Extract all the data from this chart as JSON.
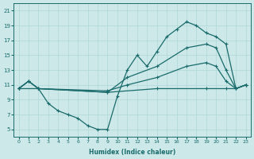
{
  "xlabel": "Humidex (Indice chaleur)",
  "xlim": [
    -0.5,
    23.5
  ],
  "ylim": [
    4,
    22
  ],
  "yticks": [
    5,
    7,
    9,
    11,
    13,
    15,
    17,
    19,
    21
  ],
  "xticks": [
    0,
    1,
    2,
    3,
    4,
    5,
    6,
    7,
    8,
    9,
    10,
    11,
    12,
    13,
    14,
    15,
    16,
    17,
    18,
    19,
    20,
    21,
    22,
    23
  ],
  "bg_color": "#cce8e8",
  "line_color": "#1a6b6b",
  "grid_color": "#b0d8d8",
  "line1": {
    "x": [
      0,
      1,
      2,
      3,
      4,
      5,
      6,
      7,
      8,
      9,
      10,
      11,
      12,
      13,
      14,
      15,
      16,
      17,
      18,
      19,
      20,
      21,
      22,
      23
    ],
    "y": [
      10.5,
      11.5,
      10.5,
      8.5,
      7.5,
      7.0,
      6.5,
      5.5,
      5.0,
      5.0,
      9.5,
      13.0,
      15.0,
      13.5,
      15.5,
      17.5,
      18.5,
      19.5,
      19.0,
      18.0,
      17.5,
      16.5,
      10.5,
      11.0
    ]
  },
  "line2": {
    "x": [
      0,
      1,
      2,
      9,
      11,
      14,
      17,
      19,
      20,
      21,
      22,
      23
    ],
    "y": [
      10.5,
      11.5,
      10.5,
      10.0,
      12.0,
      13.5,
      16.0,
      16.5,
      16.0,
      13.0,
      10.5,
      11.0
    ]
  },
  "line3": {
    "x": [
      0,
      1,
      2,
      9,
      11,
      14,
      17,
      19,
      20,
      21,
      22,
      23
    ],
    "y": [
      10.5,
      11.5,
      10.5,
      10.2,
      11.0,
      12.0,
      13.5,
      14.0,
      13.5,
      11.5,
      10.5,
      11.0
    ]
  },
  "line4": {
    "x": [
      0,
      2,
      9,
      14,
      19,
      21,
      22,
      23
    ],
    "y": [
      10.5,
      10.5,
      10.0,
      10.5,
      10.5,
      10.5,
      10.5,
      11.0
    ]
  }
}
